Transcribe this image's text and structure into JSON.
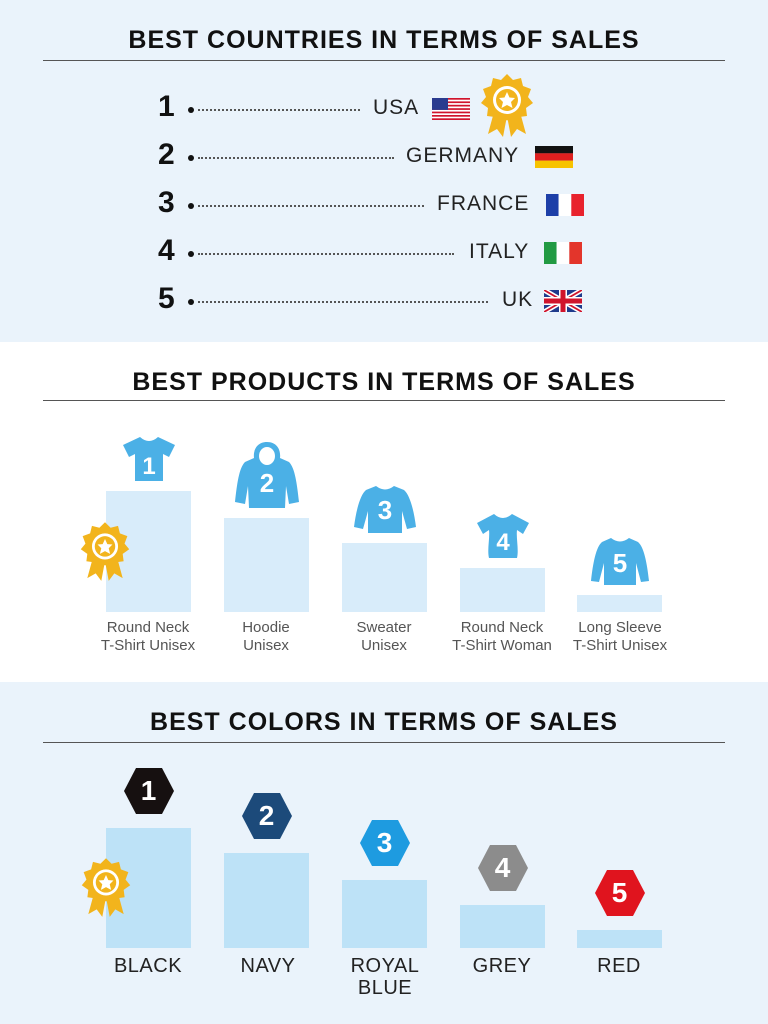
{
  "countries": {
    "title": "BEST COUNTRIES IN TERMS OF SALES",
    "items": [
      {
        "rank": "1",
        "name": "USA",
        "flag": "usa-flag-icon"
      },
      {
        "rank": "2",
        "name": "GERMANY",
        "flag": "germany-flag-icon"
      },
      {
        "rank": "3",
        "name": "FRANCE",
        "flag": "france-flag-icon"
      },
      {
        "rank": "4",
        "name": "ITALY",
        "flag": "italy-flag-icon"
      },
      {
        "rank": "5",
        "name": "UK",
        "flag": "uk-flag-icon"
      }
    ]
  },
  "products": {
    "title": "BEST PRODUCTS IN TERMS OF SALES",
    "items": [
      {
        "rank": "1",
        "line1": "Round Neck",
        "line2": "T-Shirt Unisex",
        "icon": "tshirt-icon",
        "relative_sales": 1.0
      },
      {
        "rank": "2",
        "line1": "Hoodie",
        "line2": "Unisex",
        "icon": "hoodie-icon",
        "relative_sales": 0.78
      },
      {
        "rank": "3",
        "line1": "Sweater",
        "line2": "Unisex",
        "icon": "sweater-icon",
        "relative_sales": 0.57
      },
      {
        "rank": "4",
        "line1": "Round Neck",
        "line2": "T-Shirt Woman",
        "icon": "tshirt-icon",
        "relative_sales": 0.36
      },
      {
        "rank": "5",
        "line1": "Long Sleeve",
        "line2": "T-Shirt Unisex",
        "icon": "long-sleeve-icon",
        "relative_sales": 0.14
      }
    ],
    "icon_color": "#4bb0e6",
    "bar_color": "#d8ecfa"
  },
  "colors": {
    "title": "BEST COLORS IN TERMS OF SALES",
    "items": [
      {
        "rank": "1",
        "line1": "BLACK",
        "line2": "",
        "badge_color": "#161010",
        "relative_sales": 1.0
      },
      {
        "rank": "2",
        "line1": "NAVY",
        "line2": "",
        "badge_color": "#1c4a7a",
        "relative_sales": 0.79
      },
      {
        "rank": "3",
        "line1": "ROYAL",
        "line2": "BLUE",
        "badge_color": "#1e9be0",
        "relative_sales": 0.57
      },
      {
        "rank": "4",
        "line1": "GREY",
        "line2": "",
        "badge_color": "#8c8c8c",
        "relative_sales": 0.36
      },
      {
        "rank": "5",
        "line1": "RED",
        "line2": "",
        "badge_color": "#e0141e",
        "relative_sales": 0.15
      }
    ],
    "bar_color": "#bde2f7"
  },
  "award_icon": "award-ribbon-icon",
  "award_color": "#f2b41c"
}
